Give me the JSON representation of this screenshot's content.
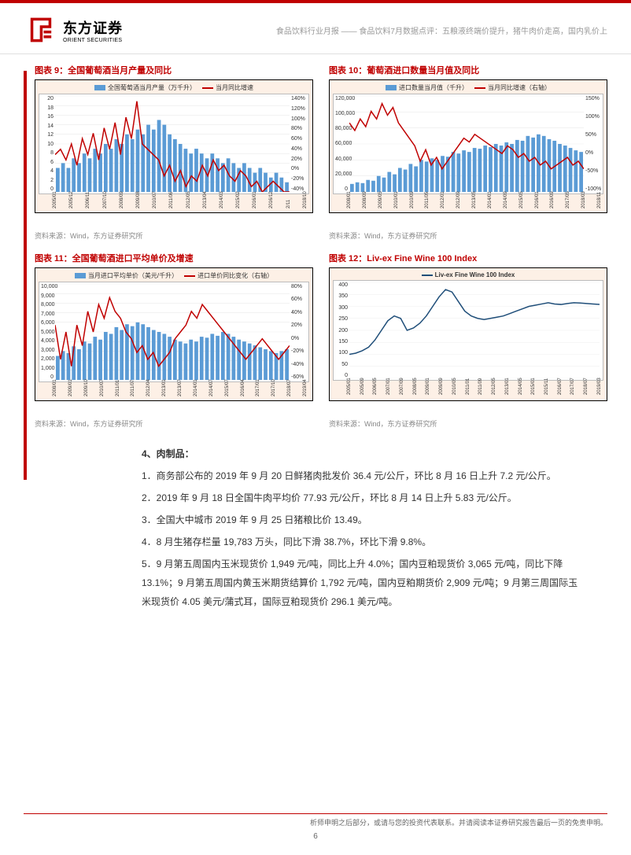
{
  "header": {
    "logo_cn": "东方证券",
    "logo_en": "ORIENT SECURITIES",
    "breadcrumb": "食品饮料行业月报 —— 食品饮料7月数据点评：五粮液终端价提升，猪牛肉价走高，国内乳价上"
  },
  "charts": [
    {
      "title": "图表 9：全国葡萄酒当月产量及同比",
      "legend_bar": "全国葡萄酒当月产量（万千升）",
      "legend_line": "当月同比增速",
      "y_left": [
        "20",
        "18",
        "16",
        "14",
        "12",
        "10",
        "8",
        "6",
        "4",
        "2",
        "0"
      ],
      "y_right": [
        "140%",
        "120%",
        "100%",
        "80%",
        "60%",
        "40%",
        "20%",
        "0%",
        "-20%",
        "-40%"
      ],
      "x": [
        "2005/01",
        "2005/12",
        "2006/11",
        "2007/10",
        "2008/09",
        "2009/08",
        "2010/07",
        "2011/06",
        "2012/05",
        "2013/04",
        "2014/03",
        "2015/02",
        "2016/01",
        "2016/12",
        "2/11",
        "2018/10"
      ],
      "bar_values": [
        5,
        6,
        5,
        7,
        6,
        8,
        7,
        9,
        8,
        10,
        9,
        11,
        10,
        12,
        11,
        13,
        12,
        14,
        13,
        15,
        14,
        12,
        11,
        10,
        9,
        8,
        9,
        8,
        7,
        8,
        7,
        6,
        7,
        6,
        5,
        6,
        5,
        4,
        5,
        4,
        3,
        4,
        3,
        2
      ],
      "bar_max": 20,
      "line_values": [
        30,
        40,
        20,
        50,
        10,
        60,
        30,
        70,
        20,
        80,
        40,
        90,
        30,
        100,
        60,
        130,
        50,
        40,
        30,
        20,
        -10,
        10,
        -20,
        0,
        -30,
        -10,
        -20,
        10,
        -10,
        20,
        0,
        10,
        -10,
        -20,
        0,
        -10,
        -30,
        -20,
        -40,
        -30,
        -20,
        -30,
        -40,
        -40
      ],
      "line_min": -40,
      "line_max": 140,
      "bar_color": "#5b9bd5",
      "line_color": "#c00000",
      "bg": "#ffffff",
      "source": "资料来源：Wind，东方证券研究所"
    },
    {
      "title": "图表 10：葡萄酒进口数量当月值及同比",
      "legend_bar": "进口数量当月值（千升）",
      "legend_line": "当月同比增速（右轴）",
      "y_left": [
        "120,000",
        "100,000",
        "80,000",
        "60,000",
        "40,000",
        "20,000",
        "0"
      ],
      "y_right": [
        "150%",
        "100%",
        "50%",
        "0%",
        "-50%",
        "-100%"
      ],
      "x": [
        "2008/01",
        "2008/09",
        "2009/05",
        "2010/01",
        "2010/09",
        "2011/05",
        "2012/01",
        "2012/09",
        "2013/05",
        "2014/01",
        "2014/09",
        "2015/05",
        "2016/01",
        "2016/09",
        "2017/05",
        "2018/03",
        "2018/11"
      ],
      "bar_values": [
        10,
        12,
        11,
        15,
        14,
        20,
        18,
        25,
        22,
        30,
        28,
        35,
        32,
        40,
        38,
        42,
        40,
        45,
        44,
        50,
        48,
        52,
        50,
        55,
        54,
        58,
        56,
        60,
        58,
        62,
        60,
        65,
        64,
        70,
        68,
        72,
        70,
        66,
        64,
        60,
        58,
        55,
        52,
        50
      ],
      "bar_max": 120,
      "line_values": [
        80,
        60,
        90,
        70,
        110,
        90,
        130,
        100,
        120,
        80,
        60,
        40,
        20,
        -20,
        10,
        -30,
        -10,
        -40,
        -20,
        0,
        20,
        40,
        30,
        50,
        40,
        30,
        20,
        10,
        0,
        20,
        10,
        -10,
        0,
        -20,
        -10,
        -30,
        -20,
        -40,
        -30,
        -20,
        -10,
        -30,
        -20,
        -40
      ],
      "line_min": -100,
      "line_max": 150,
      "bar_color": "#5b9bd5",
      "line_color": "#c00000",
      "bg": "#ffffff",
      "source": "资料来源：Wind，东方证券研究所"
    },
    {
      "title": "图表 11：全国葡萄酒进口平均单价及增速",
      "legend_bar": "当月进口平均单价（美元/千升）",
      "legend_line": "进口单价同比变化（右轴）",
      "y_left": [
        "10,000",
        "9,000",
        "8,000",
        "7,000",
        "6,000",
        "5,000",
        "4,000",
        "3,000",
        "2,000",
        "1,000",
        "0"
      ],
      "y_right": [
        "80%",
        "60%",
        "40%",
        "20%",
        "0%",
        "-20%",
        "-40%",
        "-60%"
      ],
      "x": [
        "2008/01",
        "2009/01",
        "2009/10",
        "2010/07",
        "2011/01",
        "2011/07",
        "2012/04",
        "2013/01",
        "2013/07",
        "2014/01",
        "2014/07",
        "2015/07",
        "2016/04",
        "2017/01",
        "2017/10",
        "2018/07",
        "2019/04"
      ],
      "bar_values": [
        25,
        30,
        28,
        35,
        32,
        40,
        38,
        45,
        42,
        50,
        48,
        55,
        52,
        58,
        56,
        60,
        58,
        55,
        52,
        50,
        48,
        45,
        42,
        40,
        38,
        42,
        40,
        45,
        44,
        48,
        46,
        50,
        48,
        45,
        42,
        40,
        38,
        36,
        34,
        32,
        30,
        28,
        30,
        32
      ],
      "bar_max": 100,
      "line_values": [
        20,
        -30,
        10,
        -40,
        20,
        -10,
        40,
        10,
        50,
        30,
        60,
        40,
        30,
        10,
        0,
        -20,
        -10,
        -30,
        -20,
        -40,
        -30,
        -20,
        0,
        10,
        20,
        40,
        30,
        50,
        40,
        30,
        20,
        10,
        0,
        -10,
        -20,
        -30,
        -20,
        -10,
        0,
        -10,
        -20,
        -30,
        -20,
        -10
      ],
      "line_min": -60,
      "line_max": 80,
      "bar_color": "#5b9bd5",
      "line_color": "#c00000",
      "bg": "#ffffff",
      "source": "资料来源：Wind，东方证券研究所"
    },
    {
      "title": "图表 12：Liv-ex Fine Wine 100 Index",
      "legend_line_only": "Liv-ex  Fine Wine 100 Index",
      "y_left": [
        "400",
        "350",
        "300",
        "250",
        "200",
        "150",
        "100",
        "50",
        "0"
      ],
      "x": [
        "2005/01",
        "2005/09",
        "2006/05",
        "2007/01",
        "2007/09",
        "2008/05",
        "2009/01",
        "2009/09",
        "2010/05",
        "2011/01",
        "2011/09",
        "2012/05",
        "2013/01",
        "2014/05",
        "2015/01",
        "2015/11",
        "2016/07",
        "2017/07",
        "2018/07",
        "2019/03"
      ],
      "line_values": [
        100,
        105,
        115,
        130,
        160,
        200,
        240,
        260,
        250,
        200,
        210,
        230,
        260,
        300,
        340,
        370,
        360,
        320,
        280,
        260,
        250,
        245,
        250,
        255,
        260,
        270,
        280,
        290,
        300,
        305,
        310,
        315,
        310,
        308,
        312,
        315,
        314,
        312,
        310,
        308
      ],
      "line_min": 0,
      "line_max": 400,
      "line_color": "#1f4e79",
      "bg": "#ffffff",
      "source": "资料来源：Wind，东方证券研究所"
    }
  ],
  "body": {
    "section_head": "4、肉制品：",
    "p1": "1．商务部公布的 2019 年 9 月 20 日鲜猪肉批发价 36.4 元/公斤，环比 8 月 16 日上升 7.2 元/公斤。",
    "p2": "2．2019 年 9 月 18 日全国牛肉平均价 77.93 元/公斤，环比 8 月 14 日上升 5.83 元/公斤。",
    "p3": "3．全国大中城市 2019 年 9 月 25 日猪粮比价 13.49。",
    "p4": "4．8 月生猪存栏量 19,783 万头，同比下滑 38.7%，环比下滑 9.8%。",
    "p5": "5．9 月第五周国内玉米现货价 1,949 元/吨，同比上升 4.0%；国内豆粕现货价 3,065 元/吨，同比下降 13.1%；9 月第五周国内黄玉米期货结算价 1,792 元/吨，国内豆粕期货价 2,909 元/吨；9 月第三周国际玉米现货价 4.05 美元/蒲式耳，国际豆粕现货价 296.1 美元/吨。"
  },
  "footer": {
    "disclaimer": "析师申明之后部分，或请与您的投资代表联系。并请阅读本证券研究报告最后一页的免责申明。",
    "page": "6"
  },
  "colors": {
    "brand": "#c00000",
    "bar": "#5b9bd5",
    "line_red": "#c00000",
    "line_blue": "#1f4e79",
    "chart_bg": "#fdf0e6"
  }
}
